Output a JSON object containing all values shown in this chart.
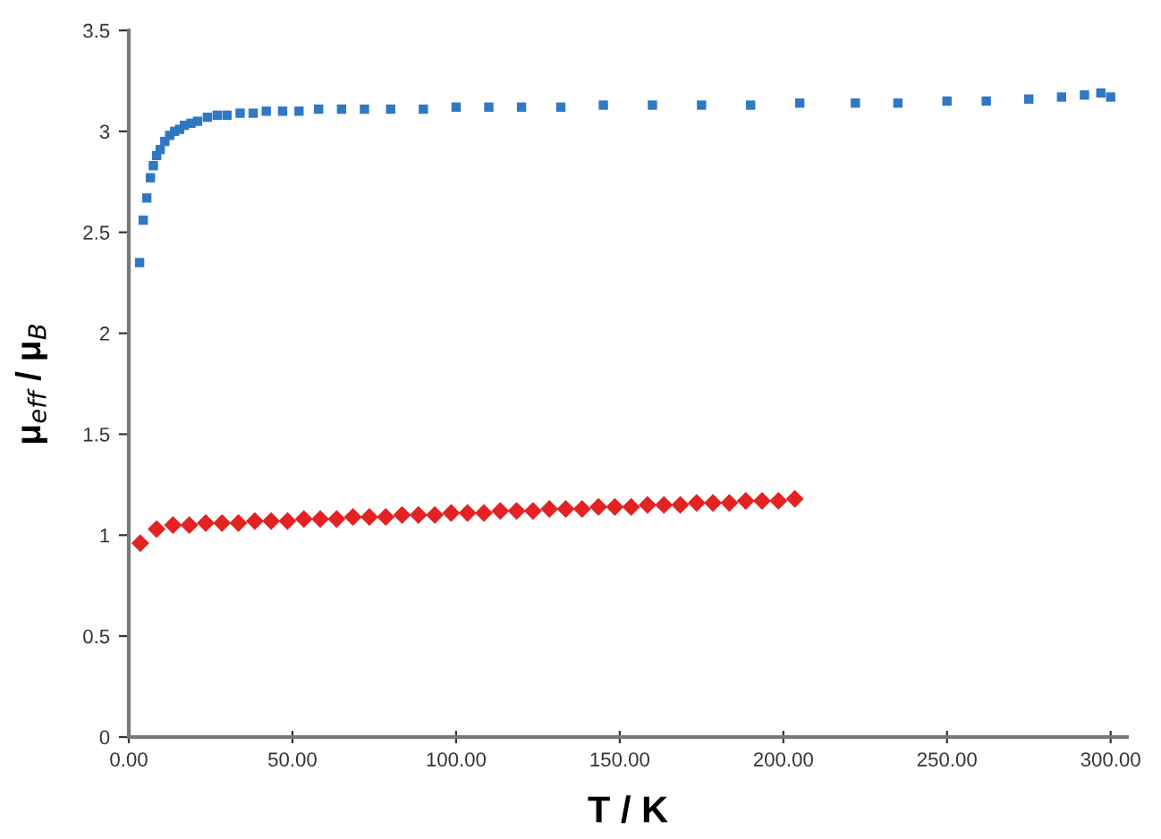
{
  "chart_data": {
    "type": "scatter",
    "xlabel": "T / K",
    "ylabel": "μ$_{eff}$ / μ$_{B}$",
    "xlim": [
      0,
      305
    ],
    "ylim": [
      0,
      3.5
    ],
    "xticks": [
      {
        "value": 0,
        "label": "0.00"
      },
      {
        "value": 50,
        "label": "50.00"
      },
      {
        "value": 100,
        "label": "100.00"
      },
      {
        "value": 150,
        "label": "150.00"
      },
      {
        "value": 200,
        "label": "200.00"
      },
      {
        "value": 250,
        "label": "250.00"
      },
      {
        "value": 300,
        "label": "300.00"
      }
    ],
    "yticks": [
      0,
      0.5,
      1,
      1.5,
      2,
      2.5,
      3,
      3.5
    ],
    "grid": false,
    "legend": false,
    "series": [
      {
        "color": "#2f78c4",
        "marker": "square",
        "x": [
          3.3,
          4.4,
          5.5,
          6.6,
          7.5,
          8.5,
          9.6,
          11,
          12.5,
          14,
          15.5,
          17,
          19,
          21,
          24,
          27,
          30,
          34,
          38,
          42,
          47,
          52,
          58,
          65,
          72,
          80,
          90,
          100,
          110,
          120,
          132,
          145,
          160,
          175,
          190,
          205,
          222,
          235,
          250,
          262,
          275,
          285,
          292,
          297,
          300
        ],
        "values": [
          2.35,
          2.56,
          2.67,
          2.77,
          2.83,
          2.88,
          2.91,
          2.95,
          2.98,
          3.0,
          3.01,
          3.03,
          3.04,
          3.05,
          3.07,
          3.08,
          3.08,
          3.09,
          3.09,
          3.1,
          3.1,
          3.1,
          3.11,
          3.11,
          3.11,
          3.11,
          3.11,
          3.12,
          3.12,
          3.12,
          3.12,
          3.13,
          3.13,
          3.13,
          3.13,
          3.14,
          3.14,
          3.14,
          3.15,
          3.15,
          3.16,
          3.17,
          3.18,
          3.19,
          3.17
        ]
      },
      {
        "color": "#e32222",
        "marker": "diamond",
        "x": [
          3.5,
          8.5,
          13.5,
          18.5,
          23.5,
          28.5,
          33.5,
          38.5,
          43.5,
          48.5,
          53.5,
          58.5,
          63.5,
          68.5,
          73.5,
          78.5,
          83.5,
          88.5,
          93.5,
          98.5,
          103.5,
          108.5,
          113.5,
          118.5,
          123.5,
          128.5,
          133.5,
          138.5,
          143.5,
          148.5,
          153.5,
          158.5,
          163.5,
          168.5,
          173.5,
          178.5,
          183.5,
          188.5,
          193.5,
          198.5,
          203.5
        ],
        "values": [
          0.96,
          1.03,
          1.05,
          1.05,
          1.06,
          1.06,
          1.06,
          1.07,
          1.07,
          1.07,
          1.08,
          1.08,
          1.08,
          1.09,
          1.09,
          1.09,
          1.1,
          1.1,
          1.1,
          1.11,
          1.11,
          1.11,
          1.12,
          1.12,
          1.12,
          1.13,
          1.13,
          1.13,
          1.14,
          1.14,
          1.14,
          1.15,
          1.15,
          1.15,
          1.16,
          1.16,
          1.16,
          1.17,
          1.17,
          1.17,
          1.18
        ]
      }
    ]
  }
}
